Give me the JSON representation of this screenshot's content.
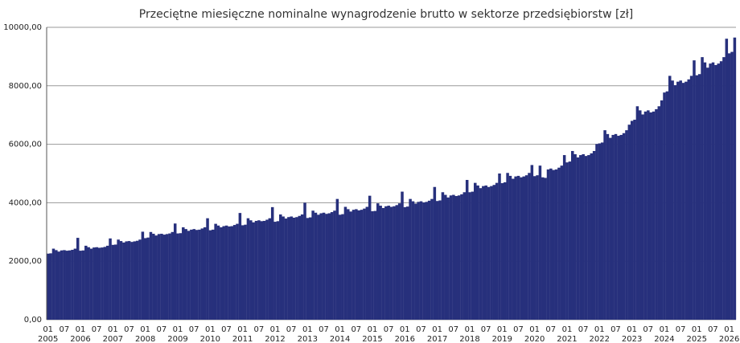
{
  "chart_data": {
    "type": "bar",
    "title": "Przeciętne miesięczne nominalne wynagrodzenie brutto w sektorze przedsiębiorstw [zł]",
    "color": "#27307c",
    "grid": true,
    "ylim": [
      0,
      10000
    ],
    "yticks": [
      {
        "value": 0,
        "label": "0,00"
      },
      {
        "value": 2000,
        "label": "2000,00"
      },
      {
        "value": 4000,
        "label": "4000,00"
      },
      {
        "value": 6000,
        "label": "6000,00"
      },
      {
        "value": 8000,
        "label": "8000,00"
      },
      {
        "value": 10000,
        "label": "10000,00"
      }
    ],
    "year_labels": [
      "2005",
      "2006",
      "2007",
      "2008",
      "2009",
      "2010",
      "2011",
      "2012",
      "2013",
      "2014",
      "2015",
      "2016",
      "2017",
      "2018",
      "2019",
      "2020",
      "2021",
      "2022",
      "2023",
      "2024",
      "2025",
      "2026"
    ],
    "categories": [
      "01",
      null,
      null,
      null,
      null,
      null,
      "07",
      null,
      null,
      null,
      null,
      null,
      "01",
      null,
      null,
      null,
      null,
      null,
      "07",
      null,
      null,
      null,
      null,
      null,
      "01",
      null,
      null,
      null,
      null,
      null,
      "07",
      null,
      null,
      null,
      null,
      null,
      "01",
      null,
      null,
      null,
      null,
      null,
      "07",
      null,
      null,
      null,
      null,
      null,
      "01",
      null,
      null,
      null,
      null,
      null,
      "07",
      null,
      null,
      null,
      null,
      null,
      "01",
      null,
      null,
      null,
      null,
      null,
      "07",
      null,
      null,
      null,
      null,
      null,
      "01",
      null,
      null,
      null,
      null,
      null,
      "07",
      null,
      null,
      null,
      null,
      null,
      "01",
      null,
      null,
      null,
      null,
      null,
      "07",
      null,
      null,
      null,
      null,
      null,
      "01",
      null,
      null,
      null,
      null,
      null,
      "07",
      null,
      null,
      null,
      null,
      null,
      "01",
      null,
      null,
      null,
      null,
      null,
      "07",
      null,
      null,
      null,
      null,
      null,
      "01",
      null,
      null,
      null,
      null,
      null,
      "07",
      null,
      null,
      null,
      null,
      null,
      "01",
      null,
      null,
      null,
      null,
      null,
      "07",
      null,
      null,
      null,
      null,
      null,
      "01",
      null,
      null,
      null,
      null,
      null,
      "07",
      null,
      null,
      null,
      null,
      null,
      "01",
      null,
      null,
      null,
      null,
      null,
      "07",
      null,
      null,
      null,
      null,
      null,
      "01",
      null,
      null,
      null,
      null,
      null,
      "07",
      null,
      null,
      null,
      null,
      null,
      "01",
      null,
      null,
      null,
      null,
      null,
      "07",
      null,
      null,
      null,
      null,
      null,
      "01",
      null,
      null,
      null,
      null,
      null,
      "07",
      null,
      null,
      null,
      null,
      null,
      "01",
      null,
      null,
      null,
      null,
      null,
      "07",
      null,
      null,
      null,
      null,
      null,
      "01",
      null,
      null,
      null,
      null,
      null,
      "07",
      null,
      null,
      null,
      null,
      null,
      "01",
      null,
      null,
      null,
      null,
      null,
      "07",
      null,
      null,
      null,
      null,
      null,
      "01",
      null,
      null,
      null,
      null,
      null,
      "07",
      null,
      null,
      null,
      null,
      null,
      "01",
      null,
      null
    ],
    "values": [
      2260,
      2270,
      2430,
      2380,
      2330,
      2370,
      2380,
      2360,
      2370,
      2390,
      2430,
      2800,
      2360,
      2370,
      2530,
      2480,
      2430,
      2470,
      2480,
      2460,
      2470,
      2490,
      2530,
      2780,
      2560,
      2570,
      2740,
      2690,
      2640,
      2680,
      2690,
      2660,
      2680,
      2700,
      2740,
      3010,
      2790,
      2810,
      3000,
      2940,
      2880,
      2930,
      2940,
      2910,
      2930,
      2950,
      3000,
      3290,
      2950,
      2960,
      3160,
      3100,
      3040,
      3080,
      3100,
      3070,
      3080,
      3120,
      3160,
      3470,
      3060,
      3080,
      3280,
      3220,
      3160,
      3200,
      3220,
      3190,
      3200,
      3240,
      3280,
      3650,
      3230,
      3250,
      3470,
      3400,
      3330,
      3380,
      3400,
      3370,
      3380,
      3420,
      3470,
      3850,
      3350,
      3370,
      3600,
      3530,
      3460,
      3510,
      3530,
      3490,
      3510,
      3550,
      3600,
      4000,
      3480,
      3500,
      3730,
      3660,
      3590,
      3640,
      3660,
      3620,
      3640,
      3680,
      3730,
      4130,
      3590,
      3610,
      3860,
      3780,
      3700,
      3760,
      3780,
      3740,
      3760,
      3800,
      3860,
      4240,
      3710,
      3720,
      3980,
      3900,
      3820,
      3880,
      3900,
      3860,
      3880,
      3920,
      3980,
      4380,
      3850,
      3870,
      4130,
      4050,
      3970,
      4030,
      4050,
      4010,
      4030,
      4070,
      4130,
      4540,
      4060,
      4080,
      4360,
      4270,
      4180,
      4250,
      4270,
      4230,
      4250,
      4290,
      4360,
      4780,
      4360,
      4380,
      4680,
      4590,
      4500,
      4570,
      4590,
      4540,
      4570,
      4610,
      4680,
      5000,
      4670,
      4700,
      5020,
      4920,
      4820,
      4900,
      4920,
      4870,
      4900,
      4940,
      5020,
      5290,
      4910,
      4940,
      5270,
      4870,
      4850,
      5140,
      5170,
      5120,
      5140,
      5200,
      5270,
      5630,
      5380,
      5410,
      5770,
      5660,
      5550,
      5630,
      5660,
      5600,
      5630,
      5690,
      5770,
      6010,
      6030,
      6060,
      6480,
      6350,
      6220,
      6320,
      6350,
      6290,
      6320,
      6380,
      6480,
      6670,
      6800,
      6840,
      7300,
      7160,
      7020,
      7120,
      7160,
      7090,
      7120,
      7200,
      7300,
      7500,
      7770,
      7810,
      8340,
      8180,
      8020,
      8140,
      8180,
      8100,
      8140,
      8220,
      8340,
      8870,
      8360,
      8400,
      8980,
      8800,
      8620,
      8760,
      8800,
      8710,
      8760,
      8840,
      8980,
      9610,
      9110,
      9160,
      9650
    ]
  }
}
